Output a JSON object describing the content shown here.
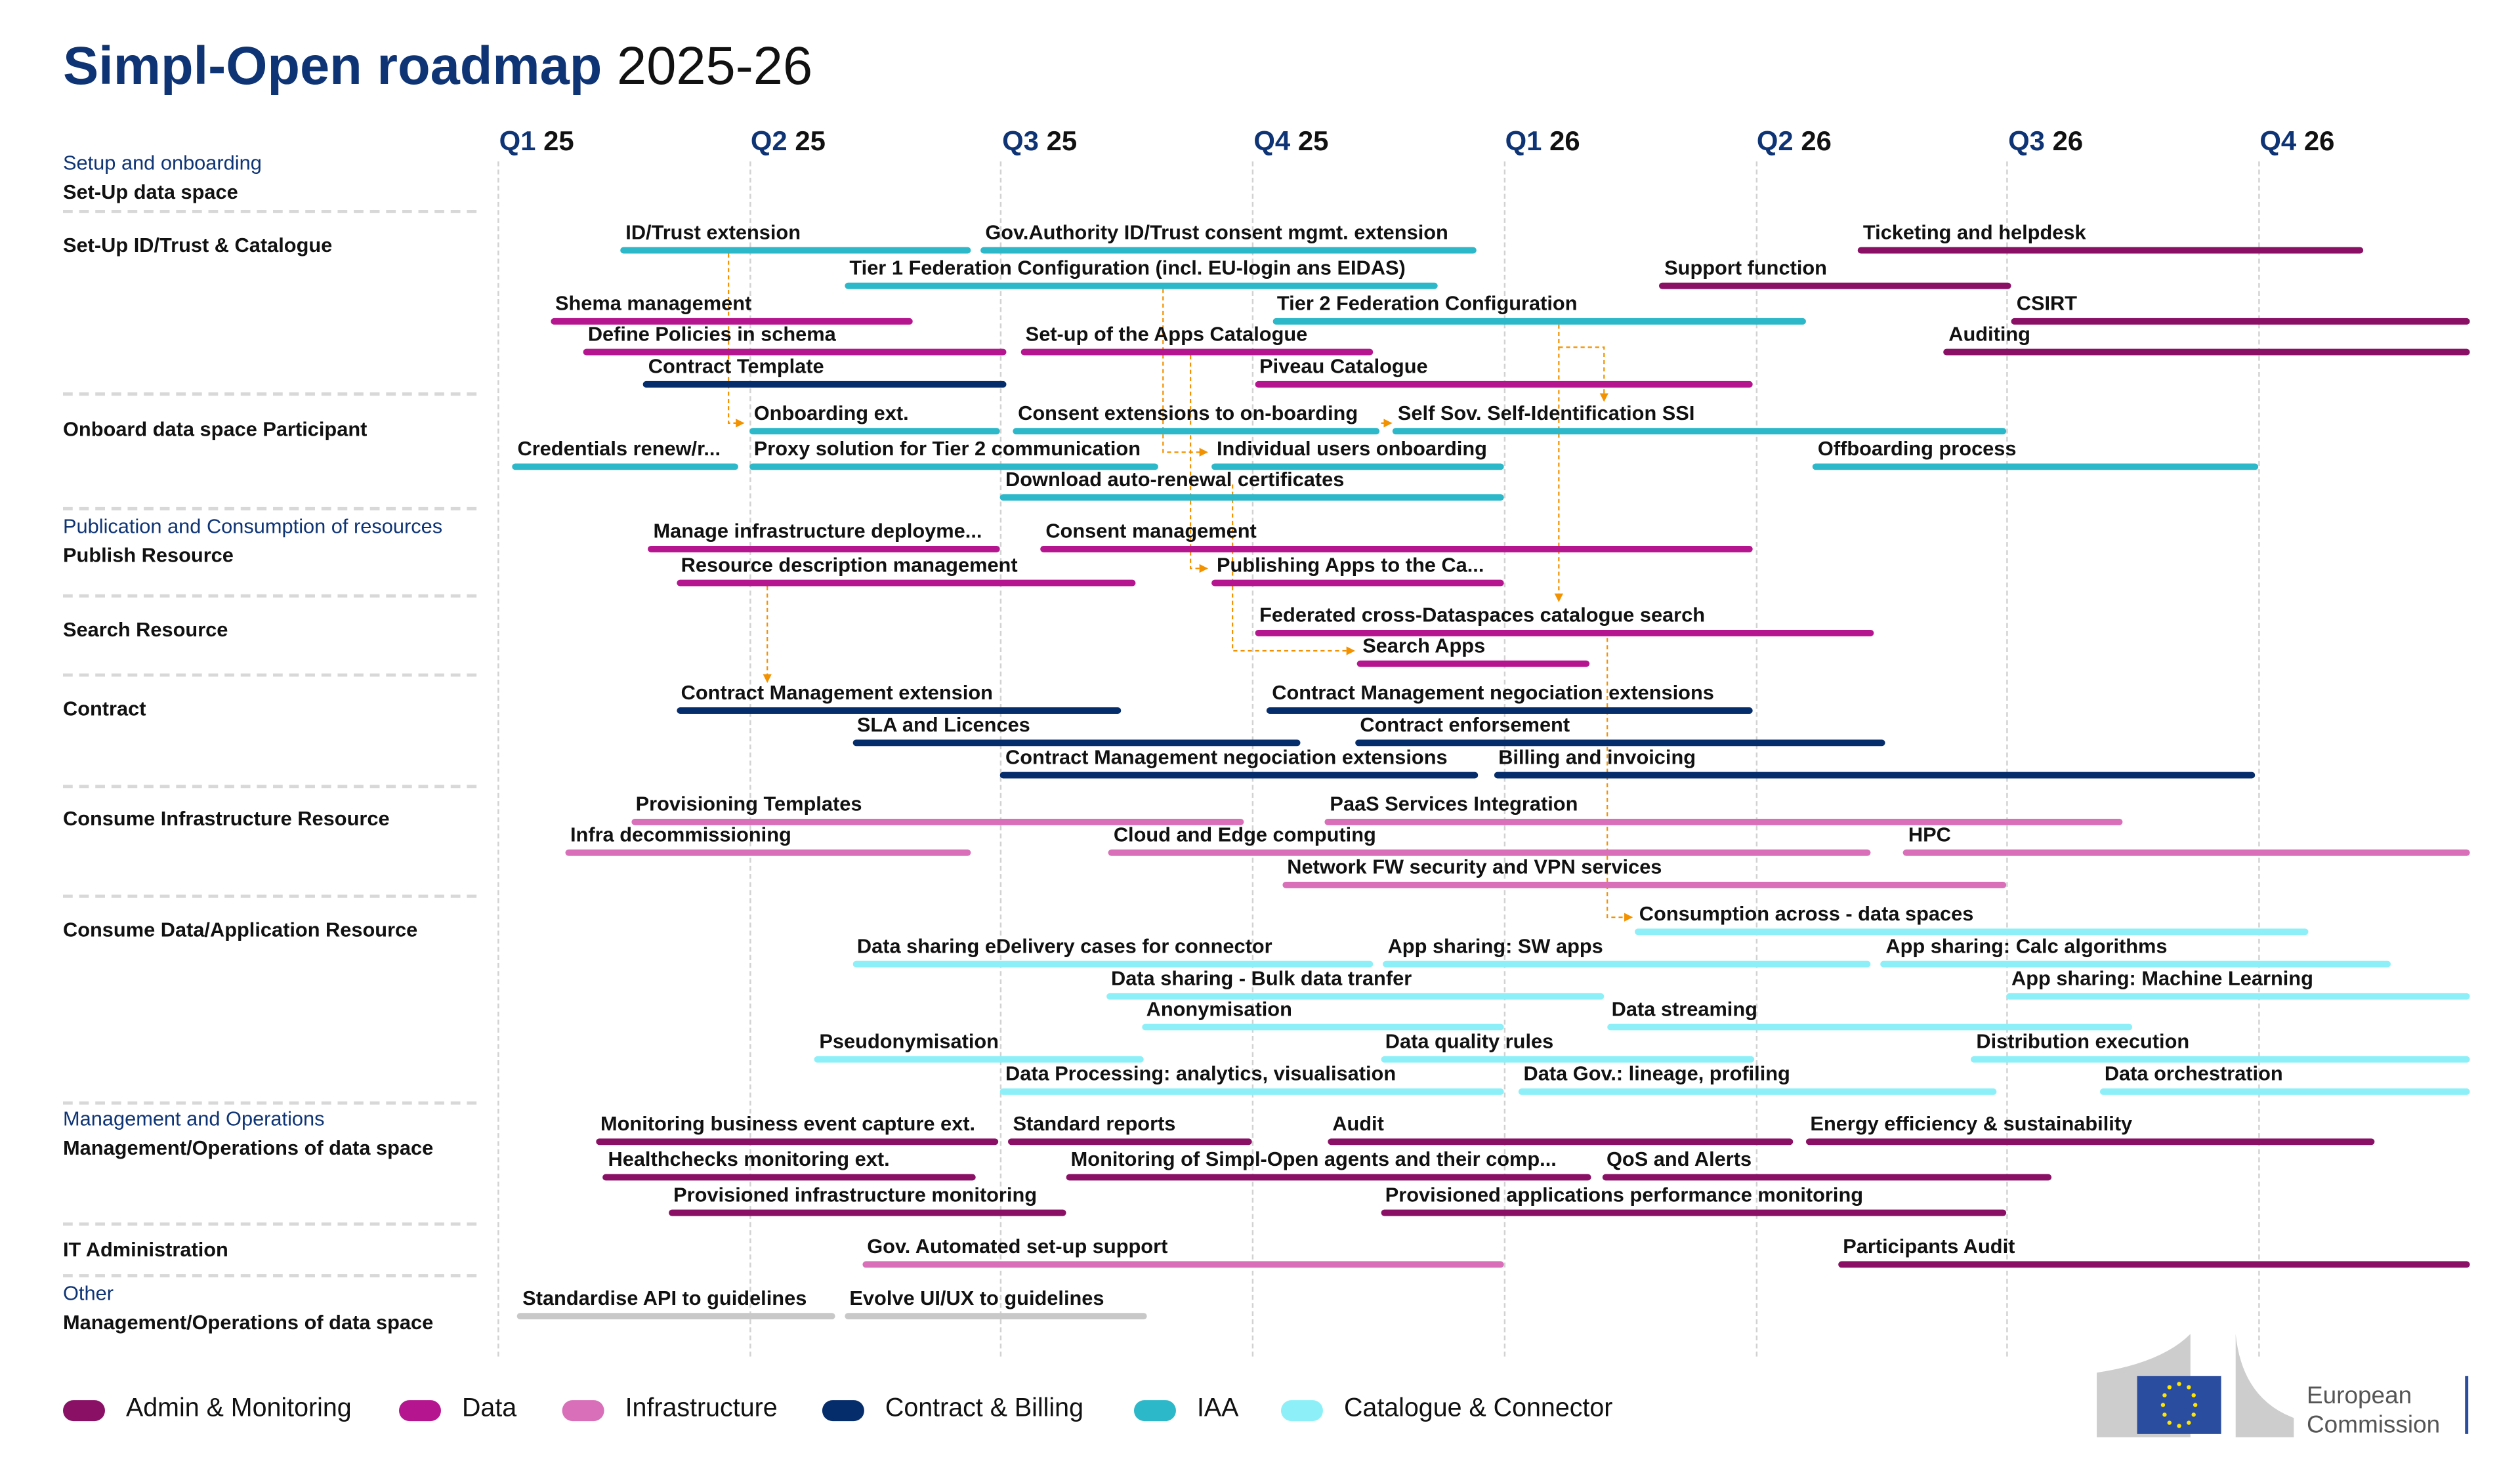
{
  "title": {
    "bold": "Simpl-Open roadmap",
    "rest": "2025-26"
  },
  "quarters": [
    {
      "q": "Q1",
      "y": "25"
    },
    {
      "q": "Q2",
      "y": "25"
    },
    {
      "q": "Q3",
      "y": "25"
    },
    {
      "q": "Q4",
      "y": "25"
    },
    {
      "q": "Q1",
      "y": "26"
    },
    {
      "q": "Q2",
      "y": "26"
    },
    {
      "q": "Q3",
      "y": "26"
    },
    {
      "q": "Q4",
      "y": "26"
    }
  ],
  "sections": [
    {
      "category": "Setup and onboarding",
      "name": "Set-Up data space"
    },
    {
      "category": "",
      "name": "Set-Up ID/Trust & Catalogue"
    },
    {
      "category": "",
      "name": "Onboard data space Participant"
    },
    {
      "category": "Publication and Consumption of resources",
      "name": "Publish Resource"
    },
    {
      "category": "",
      "name": "Search Resource"
    },
    {
      "category": "",
      "name": "Contract"
    },
    {
      "category": "",
      "name": "Consume Infrastructure Resource"
    },
    {
      "category": "",
      "name": "Consume Data/Application Resource"
    },
    {
      "category": "Management and Operations",
      "name": "Management/Operations of data space"
    },
    {
      "category": "",
      "name": "IT Administration"
    },
    {
      "category": "Other",
      "name": "Management/Operations of data space"
    }
  ],
  "colors": {
    "admin": "#8a1066",
    "data": "#b5158f",
    "infra": "#d86fb8",
    "contract": "#062d6b",
    "iaa": "#2cb8c9",
    "catalogue": "#8df0f8",
    "other": "#c8c8c8",
    "arrow": "#f39200"
  },
  "legend": [
    {
      "key": "admin",
      "label": "Admin & Monitoring"
    },
    {
      "key": "data",
      "label": "Data"
    },
    {
      "key": "infra",
      "label": "Infrastructure"
    },
    {
      "key": "contract",
      "label": "Contract & Billing"
    },
    {
      "key": "iaa",
      "label": "IAA"
    },
    {
      "key": "catalogue",
      "label": "Catalogue & Connector"
    }
  ],
  "items": [
    {
      "label": "ID/Trust extension",
      "cat": "iaa",
      "start": 0.49,
      "end": 1.88,
      "row": 0
    },
    {
      "label": "Gov.Authority ID/Trust consent mgmt. extension",
      "cat": "iaa",
      "start": 1.92,
      "end": 3.89,
      "row": 0
    },
    {
      "label": "Ticketing and helpdesk",
      "cat": "admin",
      "start": 5.41,
      "end": 7.42,
      "row": 0
    },
    {
      "label": "Tier 1 Federation Configuration (incl. EU-login ans EIDAS)",
      "cat": "iaa",
      "start": 1.38,
      "end": 3.74,
      "row": 1
    },
    {
      "label": "Support function",
      "cat": "admin",
      "start": 4.62,
      "end": 6.02,
      "row": 1
    },
    {
      "label": "Shema management",
      "cat": "data",
      "start": 0.21,
      "end": 1.65,
      "row": 2
    },
    {
      "label": "Tier 2 Federation Configuration",
      "cat": "iaa",
      "start": 3.08,
      "end": 5.2,
      "row": 2
    },
    {
      "label": "CSIRT",
      "cat": "admin",
      "start": 6.02,
      "end": 7.84,
      "row": 2
    },
    {
      "label": "Define Policies in schema",
      "cat": "data",
      "start": 0.34,
      "end": 2.02,
      "row": 3
    },
    {
      "label": "Set-up of the Apps Catalogue",
      "cat": "data",
      "start": 2.08,
      "end": 3.48,
      "row": 3
    },
    {
      "label": "Auditing",
      "cat": "admin",
      "start": 5.75,
      "end": 7.84,
      "row": 3
    },
    {
      "label": "Contract Template",
      "cat": "contract",
      "start": 0.58,
      "end": 2.02,
      "row": 4
    },
    {
      "label": "Piveau Catalogue",
      "cat": "data",
      "start": 3.01,
      "end": 4.99,
      "row": 4
    },
    {
      "label": "Onboarding ext.",
      "cat": "iaa",
      "start": 1.0,
      "end": 2.0,
      "row": 5
    },
    {
      "label": "Consent extensions to on-boarding",
      "cat": "iaa",
      "start": 2.05,
      "end": 3.51,
      "row": 5
    },
    {
      "label": "Self Sov. Self-Identification SSI",
      "cat": "iaa",
      "start": 3.56,
      "end": 6.0,
      "row": 5
    },
    {
      "label": "Credentials renew/r...",
      "cat": "iaa",
      "start": 0.06,
      "end": 0.96,
      "row": 6
    },
    {
      "label": "Proxy solution for Tier 2 communication",
      "cat": "iaa",
      "start": 1.0,
      "end": 2.63,
      "row": 6
    },
    {
      "label": "Individual users onboarding",
      "cat": "iaa",
      "start": 2.84,
      "end": 4.0,
      "row": 6
    },
    {
      "label": "Offboarding process",
      "cat": "iaa",
      "start": 5.23,
      "end": 7.0,
      "row": 6
    },
    {
      "label": "Download auto-renewal certificates",
      "cat": "iaa",
      "start": 2.0,
      "end": 4.0,
      "row": 7
    },
    {
      "label": "Manage infrastructure deployme...",
      "cat": "data",
      "start": 0.6,
      "end": 2.0,
      "row": 8
    },
    {
      "label": "Consent management",
      "cat": "data",
      "start": 2.16,
      "end": 4.99,
      "row": 8
    },
    {
      "label": "Resource description management",
      "cat": "data",
      "start": 0.71,
      "end": 2.54,
      "row": 9
    },
    {
      "label": "Publishing Apps to the Ca...",
      "cat": "data",
      "start": 2.84,
      "end": 4.0,
      "row": 9
    },
    {
      "label": "Federated cross-Dataspaces catalogue search",
      "cat": "data",
      "start": 3.01,
      "end": 5.47,
      "row": 10
    },
    {
      "label": "Search Apps",
      "cat": "data",
      "start": 3.42,
      "end": 4.34,
      "row": 11
    },
    {
      "label": "Contract Management extension",
      "cat": "contract",
      "start": 0.71,
      "end": 2.48,
      "row": 12
    },
    {
      "label": "Contract Management negociation extensions",
      "cat": "contract",
      "start": 3.06,
      "end": 4.99,
      "row": 12
    },
    {
      "label": "SLA and Licences",
      "cat": "contract",
      "start": 1.41,
      "end": 3.19,
      "row": 13
    },
    {
      "label": "Contract enforsement",
      "cat": "contract",
      "start": 3.41,
      "end": 5.52,
      "row": 13
    },
    {
      "label": "Contract Management negociation extensions",
      "cat": "contract",
      "start": 2.0,
      "end": 3.9,
      "row": 14
    },
    {
      "label": "Billing and invoicing",
      "cat": "contract",
      "start": 3.96,
      "end": 6.99,
      "row": 14
    },
    {
      "label": "Provisioning Templates",
      "cat": "infra",
      "start": 0.53,
      "end": 2.97,
      "row": 15
    },
    {
      "label": "PaaS Services Integration",
      "cat": "infra",
      "start": 3.29,
      "end": 6.46,
      "row": 15
    },
    {
      "label": "Infra decommissioning",
      "cat": "infra",
      "start": 0.27,
      "end": 1.88,
      "row": 16
    },
    {
      "label": "Cloud and Edge computing",
      "cat": "infra",
      "start": 2.43,
      "end": 5.46,
      "row": 16
    },
    {
      "label": "HPC",
      "cat": "infra",
      "start": 5.59,
      "end": 7.84,
      "row": 16
    },
    {
      "label": "Network FW security and VPN services",
      "cat": "infra",
      "start": 3.12,
      "end": 6.0,
      "row": 17
    },
    {
      "label": "Consumption across - data spaces",
      "cat": "catalogue",
      "start": 4.52,
      "end": 7.2,
      "row": 18
    },
    {
      "label": "Data sharing eDelivery cases for connector",
      "cat": "catalogue",
      "start": 1.41,
      "end": 3.48,
      "row": 19
    },
    {
      "label": "App sharing: SW apps",
      "cat": "catalogue",
      "start": 3.52,
      "end": 5.46,
      "row": 19
    },
    {
      "label": "App sharing: Calc algorithms",
      "cat": "catalogue",
      "start": 5.5,
      "end": 7.53,
      "row": 19
    },
    {
      "label": "Data sharing - Bulk data tranfer",
      "cat": "catalogue",
      "start": 2.42,
      "end": 4.4,
      "row": 20
    },
    {
      "label": "App sharing: Machine Learning",
      "cat": "catalogue",
      "start": 6.0,
      "end": 7.84,
      "row": 20
    },
    {
      "label": "Anonymisation",
      "cat": "catalogue",
      "start": 2.56,
      "end": 4.0,
      "row": 21
    },
    {
      "label": "Data streaming",
      "cat": "catalogue",
      "start": 4.41,
      "end": 6.5,
      "row": 21
    },
    {
      "label": "Pseudonymisation",
      "cat": "catalogue",
      "start": 1.26,
      "end": 2.57,
      "row": 22
    },
    {
      "label": "Data quality rules",
      "cat": "catalogue",
      "start": 3.51,
      "end": 5.0,
      "row": 22
    },
    {
      "label": "Distribution execution",
      "cat": "catalogue",
      "start": 5.86,
      "end": 7.84,
      "row": 22
    },
    {
      "label": "Data Processing: analytics, visualisation",
      "cat": "catalogue",
      "start": 2.0,
      "end": 4.0,
      "row": 23
    },
    {
      "label": "Data Gov.: lineage, profiling",
      "cat": "catalogue",
      "start": 4.06,
      "end": 5.96,
      "row": 23
    },
    {
      "label": "Data orchestration",
      "cat": "catalogue",
      "start": 6.37,
      "end": 7.84,
      "row": 23
    },
    {
      "label": "Monitoring business event capture ext.",
      "cat": "admin",
      "start": 0.39,
      "end": 1.99,
      "row": 24
    },
    {
      "label": "Standard reports",
      "cat": "admin",
      "start": 2.03,
      "end": 3.0,
      "row": 24
    },
    {
      "label": "Audit",
      "cat": "admin",
      "start": 3.3,
      "end": 5.15,
      "row": 24
    },
    {
      "label": "Energy efficiency & sustainability",
      "cat": "admin",
      "start": 5.2,
      "end": 7.46,
      "row": 24
    },
    {
      "label": "Healthchecks monitoring ext.",
      "cat": "admin",
      "start": 0.42,
      "end": 1.9,
      "row": 25
    },
    {
      "label": "Monitoring of Simpl-Open agents and their comp...",
      "cat": "admin",
      "start": 2.26,
      "end": 4.35,
      "row": 25
    },
    {
      "label": "QoS and Alerts",
      "cat": "admin",
      "start": 4.39,
      "end": 6.18,
      "row": 25
    },
    {
      "label": "Provisioned infrastructure monitoring",
      "cat": "admin",
      "start": 0.68,
      "end": 2.26,
      "row": 26
    },
    {
      "label": "Provisioned applications performance monitoring",
      "cat": "admin",
      "start": 3.51,
      "end": 6.0,
      "row": 26
    },
    {
      "label": "Gov. Automated set-up support",
      "cat": "infra",
      "start": 1.45,
      "end": 4.0,
      "row": 27
    },
    {
      "label": "Participants Audit",
      "cat": "admin",
      "start": 5.33,
      "end": 7.84,
      "row": 27
    },
    {
      "label": "Standardise API to guidelines",
      "cat": "other",
      "start": 0.08,
      "end": 1.34,
      "row": 28
    },
    {
      "label": "Evolve UI/UX to guidelines",
      "cat": "other",
      "start": 1.38,
      "end": 2.58,
      "row": 28
    }
  ],
  "logo": {
    "line1": "European",
    "line2": "Commission"
  }
}
